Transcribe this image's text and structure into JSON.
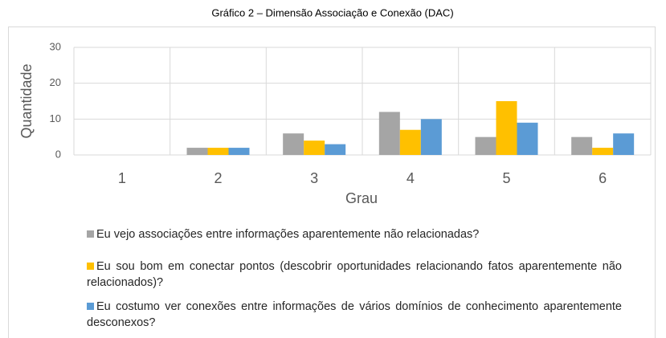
{
  "chart_data": {
    "type": "bar",
    "title": "Gráfico 2 – Dimensão Associação e Conexão (DAC)",
    "x_label": "Grau",
    "y_label": "Quantidade",
    "categories": [
      "1",
      "2",
      "3",
      "4",
      "5",
      "6"
    ],
    "series": [
      {
        "name": "Eu vejo associações entre informações aparentemente não relacionadas?",
        "color": "#a5a5a5",
        "values": [
          0,
          2,
          6,
          12,
          5,
          5
        ]
      },
      {
        "name": "Eu sou bom em conectar pontos (descobrir oportunidades relacionando fatos aparentemente não relacionados)?",
        "color": "#ffc000",
        "values": [
          0,
          2,
          4,
          7,
          15,
          2
        ]
      },
      {
        "name": "Eu costumo ver conexões entre informações de vários domínios de conhecimento aparentemente desconexos?",
        "color": "#5b9bd5",
        "values": [
          0,
          2,
          3,
          10,
          9,
          6
        ]
      }
    ],
    "ylim": [
      0,
      30
    ],
    "yticks": [
      0,
      10,
      20,
      30
    ],
    "grid": true,
    "legend": "bottom"
  }
}
